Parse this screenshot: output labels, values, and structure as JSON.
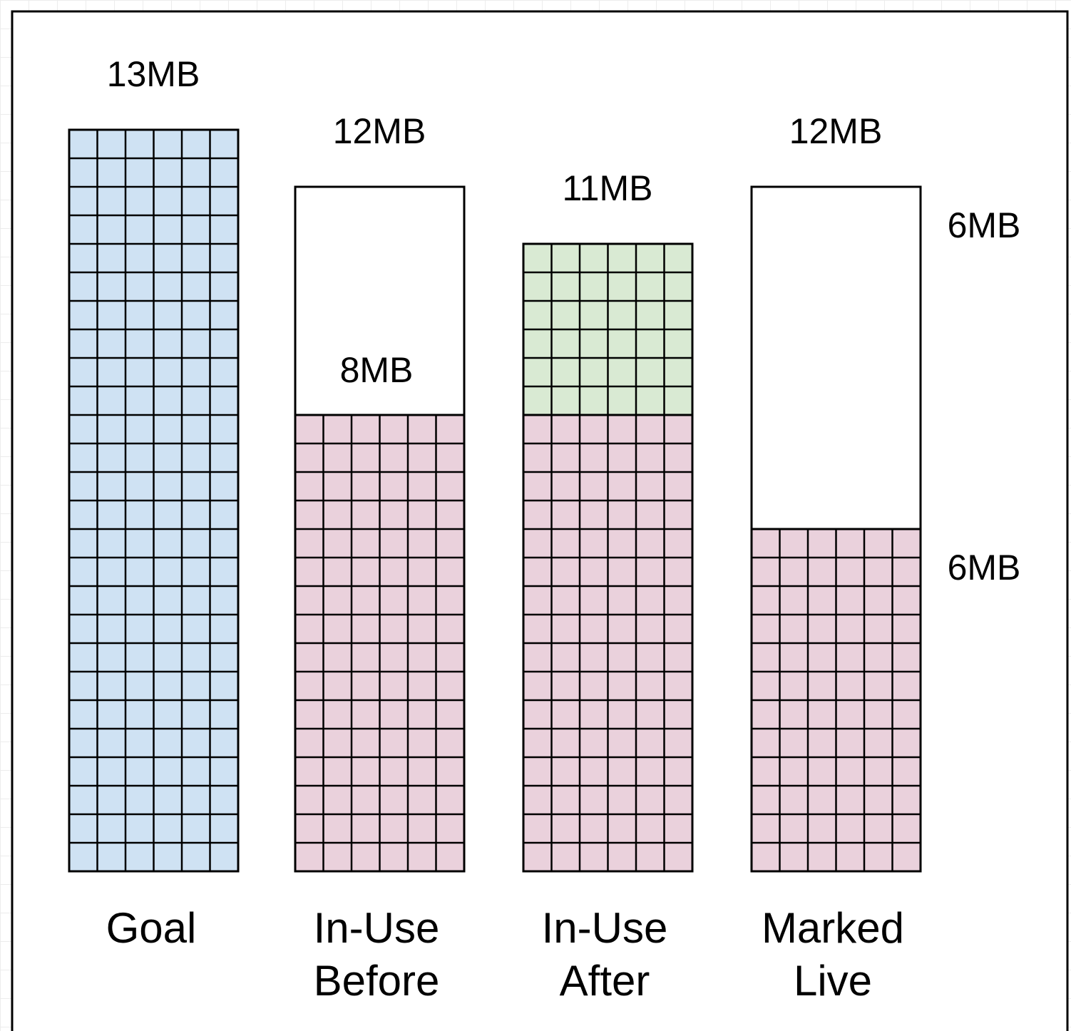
{
  "colors": {
    "goal": "#cfe2f3",
    "in_use": "#ead1dc",
    "new_alloc": "#d9ead3",
    "empty": "#ffffff",
    "stroke": "#000000",
    "frame": "#000000"
  },
  "columns": [
    {
      "id": "goal",
      "label_lines": [
        "Goal"
      ],
      "top_label": "13MB",
      "inner_label": "",
      "segments": [
        {
          "kind": "goal",
          "mb": 13
        }
      ]
    },
    {
      "id": "in-use-before",
      "label_lines": [
        "In-Use",
        "Before"
      ],
      "top_label": "12MB",
      "inner_label": "8MB",
      "segments": [
        {
          "kind": "in_use",
          "mb": 8
        },
        {
          "kind": "empty",
          "mb": 4
        }
      ]
    },
    {
      "id": "in-use-after",
      "label_lines": [
        "In-Use",
        "After"
      ],
      "top_label": "11MB",
      "inner_label": "",
      "segments": [
        {
          "kind": "in_use",
          "mb": 8
        },
        {
          "kind": "new_alloc",
          "mb": 3
        }
      ]
    },
    {
      "id": "marked-live",
      "label_lines": [
        "Marked",
        "Live"
      ],
      "top_label": "12MB",
      "inner_label": "",
      "segments": [
        {
          "kind": "in_use",
          "mb": 6
        },
        {
          "kind": "empty",
          "mb": 6
        }
      ]
    }
  ],
  "side_labels": {
    "upper": "6MB",
    "lower": "6MB"
  }
}
